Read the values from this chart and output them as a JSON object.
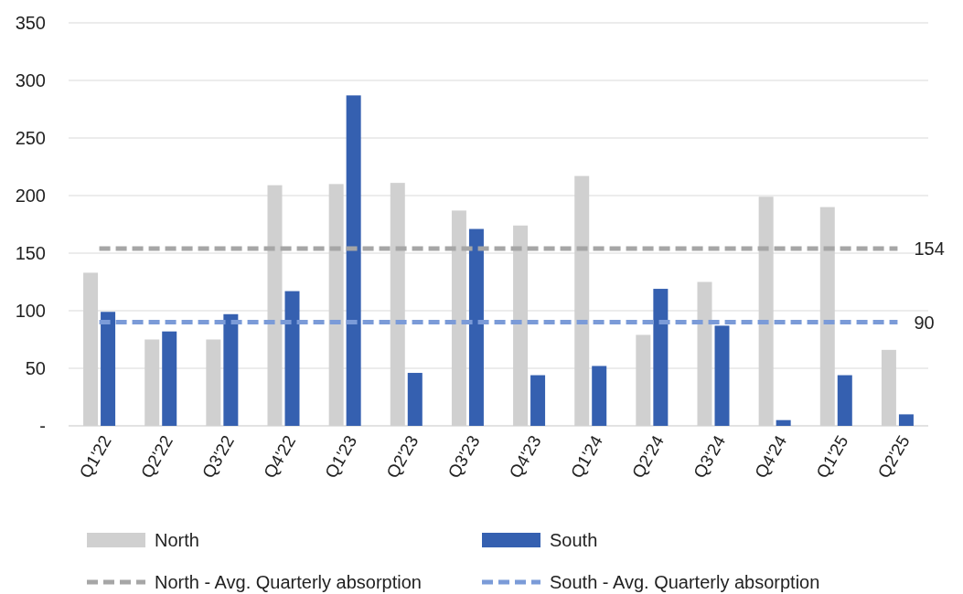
{
  "chart_data": {
    "type": "bar",
    "categories": [
      "Q1'22",
      "Q2'22",
      "Q3'22",
      "Q4'22",
      "Q1'23",
      "Q2'23",
      "Q3'23",
      "Q4'23",
      "Q1'24",
      "Q2'24",
      "Q3'24",
      "Q4'24",
      "Q1'25",
      "Q2'25"
    ],
    "series": [
      {
        "name": "North",
        "color": "#d0d0d0",
        "values": [
          133,
          75,
          75,
          209,
          210,
          211,
          187,
          174,
          217,
          79,
          125,
          199,
          190,
          66
        ]
      },
      {
        "name": "South",
        "color": "#3560b0",
        "values": [
          99,
          82,
          97,
          117,
          287,
          46,
          171,
          44,
          52,
          119,
          87,
          5,
          44,
          10
        ]
      },
      {
        "name": "North - Avg. Quarterly absorption",
        "type": "line",
        "line_style": "dashed",
        "marker": "none",
        "color": "#a6a6a6",
        "values": [
          154,
          154,
          154,
          154,
          154,
          154,
          154,
          154,
          154,
          154,
          154,
          154,
          154,
          154
        ]
      },
      {
        "name": "South - Avg. Quarterly absorption",
        "type": "line",
        "line_style": "dashed",
        "marker": "none",
        "color": "#7b9bd8",
        "values": [
          90,
          90,
          90,
          90,
          90,
          90,
          90,
          90,
          90,
          90,
          90,
          90,
          90,
          90
        ]
      }
    ],
    "annotations": [
      {
        "text": "154",
        "x": "Q2'25",
        "y": 154
      },
      {
        "text": "90",
        "x": "Q2'25",
        "y": 90
      }
    ],
    "ylim": [
      0,
      350
    ],
    "yticks": [
      {
        "value": 0,
        "label": "-"
      },
      50,
      100,
      150,
      200,
      250,
      300,
      350
    ],
    "grid": "y",
    "legend": "bottom"
  }
}
